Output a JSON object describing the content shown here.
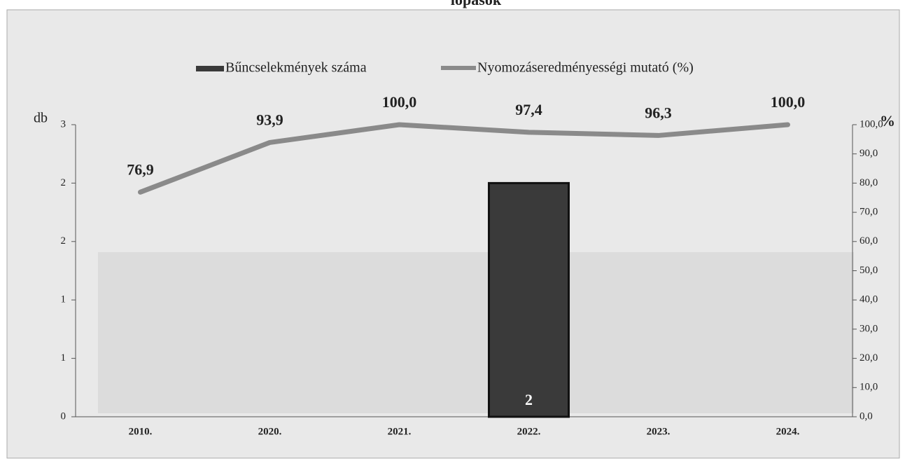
{
  "chart_data": {
    "type": "bar-line",
    "title": "lopások",
    "y_label": "db",
    "y2_label": "%",
    "categories": [
      "2010.",
      "2020.",
      "2021.",
      "2022.",
      "2023.",
      "2024."
    ],
    "series": [
      {
        "name": "Bűncselekmények száma",
        "type": "bar",
        "color": "#3a3a3a",
        "values": [
          null,
          null,
          null,
          2,
          null,
          null
        ]
      },
      {
        "name": "Nyomozáseredményességi mutató (%)",
        "type": "line",
        "axis": "y2",
        "color": "#8a8a8a",
        "values": [
          76.9,
          93.9,
          100,
          97.4,
          96.3,
          100
        ],
        "value_labels": [
          "76,9",
          "93,9",
          "100,0",
          "97,4",
          "96,3",
          "100,0"
        ]
      }
    ],
    "ylim": [
      0,
      2.5
    ],
    "yticks": [
      0,
      {
        "value": 0.5,
        "label": "1"
      },
      1,
      {
        "value": 1.5,
        "label": "2"
      },
      2,
      {
        "value": 2.5,
        "label": "3"
      }
    ],
    "y2lim": [
      0,
      100
    ],
    "y2ticks": [
      {
        "value": 0,
        "label": "0,0"
      },
      {
        "value": 10,
        "label": "10,0"
      },
      {
        "value": 20,
        "label": "20,0"
      },
      {
        "value": 30,
        "label": "30,0"
      },
      {
        "value": 40,
        "label": "40,0"
      },
      {
        "value": 50,
        "label": "50,0"
      },
      {
        "value": 60,
        "label": "60,0"
      },
      {
        "value": 70,
        "label": "70,0"
      },
      {
        "value": 80,
        "label": "80,0"
      },
      {
        "value": 90,
        "label": "90,0"
      },
      {
        "value": 100,
        "label": "100,0"
      }
    ],
    "legend": "top"
  }
}
